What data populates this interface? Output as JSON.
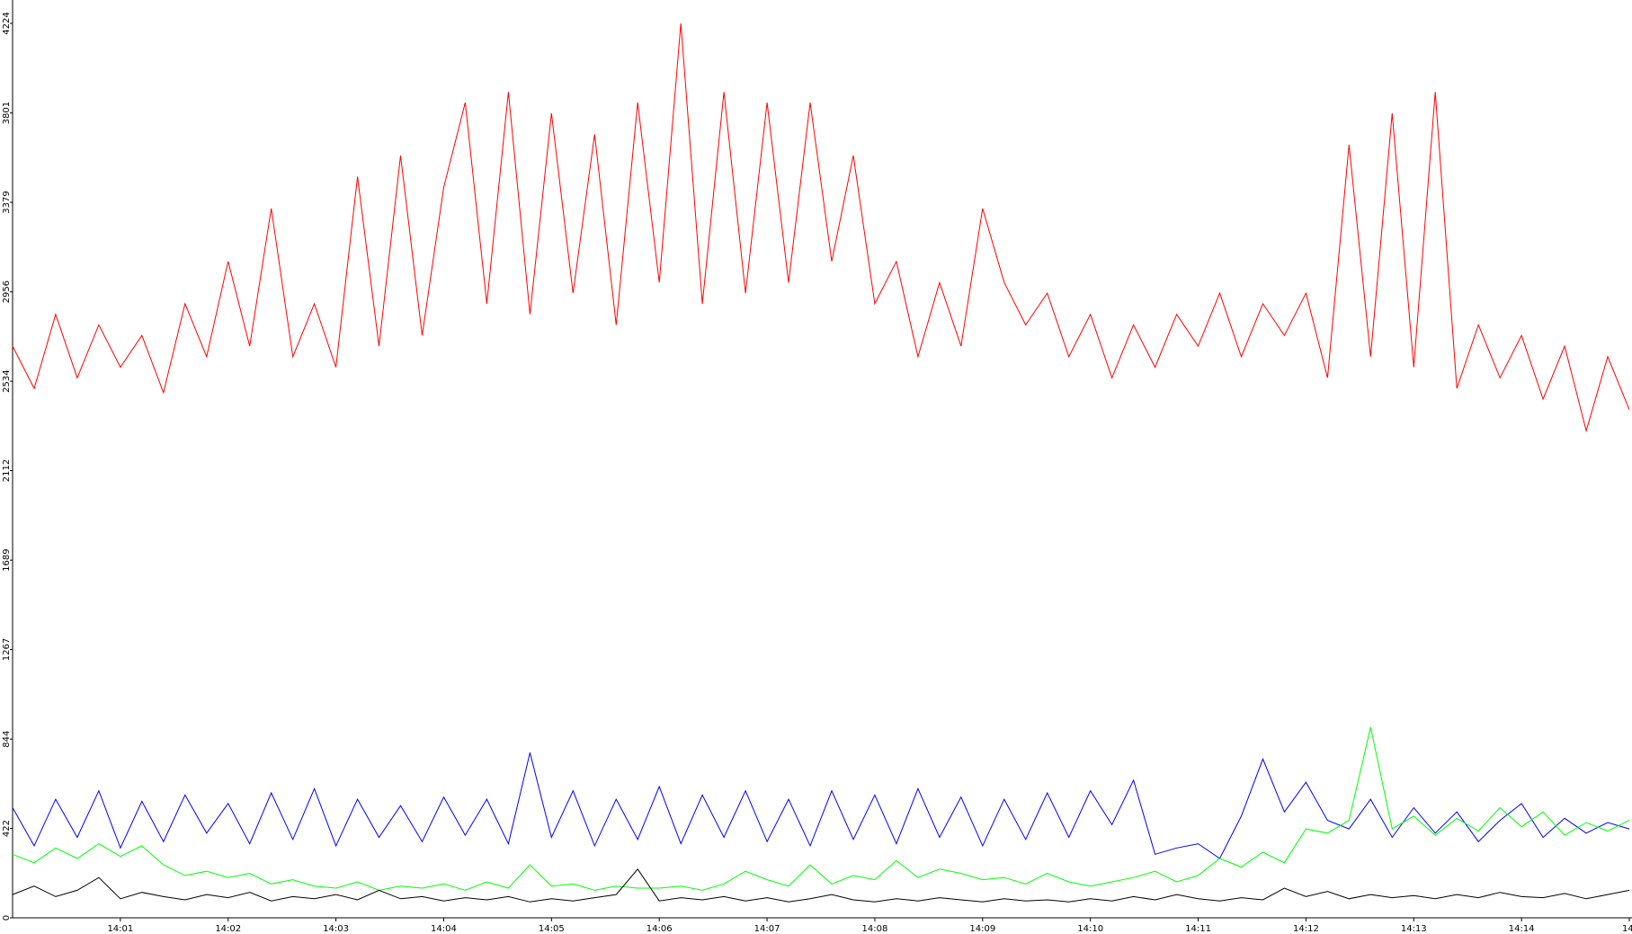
{
  "chart_data": {
    "type": "line",
    "x": [
      0,
      0.2,
      0.4,
      0.6,
      0.8,
      1,
      1.2,
      1.4,
      1.6,
      1.8,
      2,
      2.2,
      2.4,
      2.6,
      2.8,
      3,
      3.2,
      3.4,
      3.6,
      3.8,
      4,
      4.2,
      4.4,
      4.6,
      4.8,
      5,
      5.2,
      5.4,
      5.6,
      5.8,
      6,
      6.2,
      6.4,
      6.6,
      6.8,
      7,
      7.2,
      7.4,
      7.6,
      7.8,
      8,
      8.2,
      8.4,
      8.6,
      8.8,
      9,
      9.2,
      9.4,
      9.6,
      9.8,
      10,
      10.2,
      10.4,
      10.6,
      10.8,
      11,
      11.2,
      11.4,
      11.6,
      11.8,
      12,
      12.2,
      12.4,
      12.6,
      12.8,
      13,
      13.2,
      13.4,
      13.6,
      13.8,
      14,
      14.2,
      14.4,
      14.6,
      14.8,
      15
    ],
    "series": [
      {
        "color": "#ff0000",
        "values": [
          2700,
          2500,
          2850,
          2550,
          2800,
          2600,
          2750,
          2480,
          2900,
          2650,
          3100,
          2700,
          3350,
          2650,
          2900,
          2600,
          3500,
          2700,
          3600,
          2750,
          3450,
          3850,
          2900,
          3900,
          2850,
          3800,
          2950,
          3700,
          2800,
          3850,
          3000,
          4224,
          2900,
          3900,
          2950,
          3850,
          3000,
          3850,
          3100,
          3600,
          2900,
          3100,
          2650,
          3000,
          2700,
          3350,
          3000,
          2800,
          2950,
          2650,
          2850,
          2550,
          2800,
          2600,
          2850,
          2700,
          2950,
          2650,
          2900,
          2750,
          2950,
          2550,
          3650,
          2650,
          3800,
          2600,
          3900,
          2500,
          2800,
          2550,
          2750,
          2450,
          2700,
          2300,
          2650,
          2400
        ]
      },
      {
        "color": "#0000ff",
        "values": [
          520,
          340,
          560,
          380,
          600,
          330,
          550,
          360,
          580,
          400,
          540,
          350,
          590,
          370,
          610,
          340,
          560,
          380,
          530,
          360,
          570,
          390,
          560,
          350,
          780,
          380,
          600,
          340,
          560,
          370,
          620,
          350,
          580,
          380,
          600,
          360,
          560,
          340,
          600,
          370,
          580,
          350,
          610,
          380,
          570,
          340,
          560,
          370,
          590,
          380,
          600,
          440,
          650,
          300,
          330,
          350,
          280,
          480,
          750,
          500,
          640,
          460,
          420,
          560,
          380,
          520,
          400,
          500,
          360,
          460,
          540,
          380,
          470,
          400,
          450,
          420
        ]
      },
      {
        "color": "#00ff00",
        "values": [
          300,
          260,
          330,
          280,
          350,
          290,
          340,
          250,
          200,
          220,
          190,
          210,
          160,
          180,
          150,
          140,
          170,
          130,
          150,
          140,
          160,
          130,
          170,
          140,
          250,
          150,
          160,
          130,
          150,
          140,
          140,
          150,
          130,
          160,
          220,
          180,
          150,
          250,
          160,
          200,
          180,
          270,
          190,
          230,
          210,
          180,
          190,
          160,
          210,
          170,
          150,
          170,
          190,
          220,
          170,
          200,
          280,
          240,
          310,
          260,
          420,
          400,
          460,
          900,
          420,
          480,
          390,
          470,
          410,
          520,
          430,
          500,
          390,
          450,
          410,
          460
        ]
      },
      {
        "color": "#000000",
        "values": [
          110,
          150,
          100,
          130,
          190,
          90,
          120,
          100,
          85,
          110,
          95,
          120,
          80,
          100,
          90,
          110,
          85,
          130,
          90,
          100,
          80,
          95,
          85,
          100,
          75,
          90,
          80,
          95,
          110,
          230,
          80,
          95,
          85,
          100,
          80,
          95,
          75,
          90,
          110,
          85,
          75,
          90,
          80,
          95,
          85,
          75,
          90,
          80,
          85,
          75,
          90,
          80,
          100,
          85,
          110,
          90,
          80,
          95,
          85,
          140,
          100,
          125,
          90,
          110,
          95,
          105,
          90,
          110,
          95,
          120,
          100,
          95,
          115,
          90,
          110,
          130
        ]
      }
    ],
    "xlim": [
      0,
      15
    ],
    "xticks": [
      {
        "value": 1,
        "label": "14:01"
      },
      {
        "value": 2,
        "label": "14:02"
      },
      {
        "value": 3,
        "label": "14:03"
      },
      {
        "value": 4,
        "label": "14:04"
      },
      {
        "value": 5,
        "label": "14:05"
      },
      {
        "value": 6,
        "label": "14:06"
      },
      {
        "value": 7,
        "label": "14:07"
      },
      {
        "value": 8,
        "label": "14:08"
      },
      {
        "value": 9,
        "label": "14:09"
      },
      {
        "value": 10,
        "label": "14:10"
      },
      {
        "value": 11,
        "label": "14:11"
      },
      {
        "value": 12,
        "label": "14:12"
      },
      {
        "value": 13,
        "label": "14:13"
      },
      {
        "value": 14,
        "label": "14:14"
      },
      {
        "value": 15,
        "label": "14:"
      }
    ],
    "ylim": [
      0,
      4224
    ],
    "yticks": [
      0,
      422,
      844,
      1267,
      1689,
      2112,
      2534,
      2956,
      3379,
      3801,
      4224
    ]
  }
}
